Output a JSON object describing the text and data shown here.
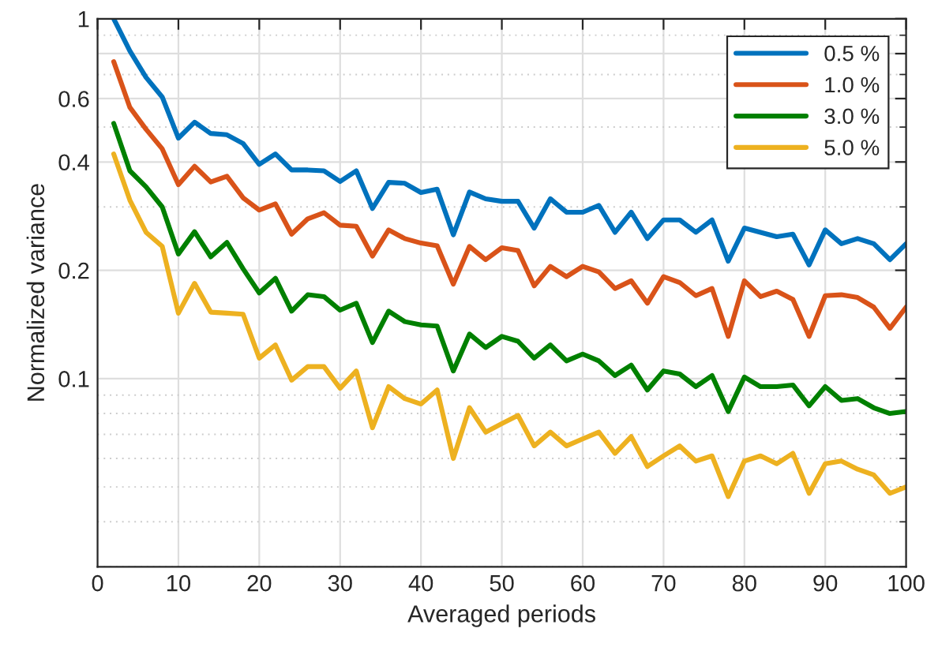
{
  "chart_data": {
    "type": "line",
    "xlabel": "Averaged periods",
    "ylabel": "Normalized variance",
    "x": [
      2,
      4,
      6,
      8,
      10,
      12,
      14,
      16,
      18,
      20,
      22,
      24,
      26,
      28,
      30,
      32,
      34,
      36,
      38,
      40,
      42,
      44,
      46,
      48,
      50,
      52,
      54,
      56,
      58,
      60,
      62,
      64,
      66,
      68,
      70,
      72,
      74,
      76,
      78,
      80,
      82,
      84,
      86,
      88,
      90,
      92,
      94,
      96,
      98,
      100
    ],
    "series": [
      {
        "name": "0.5 %",
        "color": "#0072bd",
        "values": [
          1.0,
          0.814,
          0.687,
          0.606,
          0.466,
          0.516,
          0.48,
          0.476,
          0.45,
          0.394,
          0.421,
          0.38,
          0.38,
          0.378,
          0.353,
          0.378,
          0.297,
          0.351,
          0.349,
          0.329,
          0.336,
          0.251,
          0.33,
          0.316,
          0.311,
          0.311,
          0.262,
          0.316,
          0.29,
          0.29,
          0.303,
          0.255,
          0.29,
          0.245,
          0.276,
          0.276,
          0.255,
          0.276,
          0.212,
          0.262,
          0.255,
          0.248,
          0.252,
          0.207,
          0.259,
          0.237,
          0.245,
          0.237,
          0.214,
          0.237
        ]
      },
      {
        "name": "1.0 %",
        "color": "#d95319",
        "values": [
          0.76,
          0.567,
          0.493,
          0.435,
          0.346,
          0.389,
          0.352,
          0.365,
          0.318,
          0.294,
          0.306,
          0.252,
          0.278,
          0.289,
          0.267,
          0.265,
          0.219,
          0.259,
          0.245,
          0.238,
          0.234,
          0.183,
          0.233,
          0.214,
          0.231,
          0.227,
          0.181,
          0.205,
          0.192,
          0.205,
          0.198,
          0.178,
          0.187,
          0.162,
          0.192,
          0.185,
          0.17,
          0.178,
          0.131,
          0.187,
          0.169,
          0.175,
          0.166,
          0.131,
          0.17,
          0.171,
          0.168,
          0.158,
          0.138,
          0.158
        ]
      },
      {
        "name": "3.0 %",
        "color": "#008000",
        "values": [
          0.512,
          0.378,
          0.341,
          0.3,
          0.222,
          0.256,
          0.218,
          0.239,
          0.202,
          0.173,
          0.19,
          0.154,
          0.171,
          0.169,
          0.155,
          0.162,
          0.126,
          0.154,
          0.144,
          0.141,
          0.14,
          0.105,
          0.133,
          0.122,
          0.131,
          0.127,
          0.114,
          0.124,
          0.112,
          0.117,
          0.112,
          0.102,
          0.109,
          0.093,
          0.105,
          0.103,
          0.095,
          0.102,
          0.081,
          0.101,
          0.095,
          0.095,
          0.096,
          0.084,
          0.095,
          0.087,
          0.088,
          0.083,
          0.08,
          0.081
        ]
      },
      {
        "name": "5.0 %",
        "color": "#edb120",
        "values": [
          0.421,
          0.313,
          0.255,
          0.233,
          0.152,
          0.184,
          0.153,
          0.152,
          0.151,
          0.114,
          0.124,
          0.099,
          0.108,
          0.108,
          0.094,
          0.105,
          0.073,
          0.095,
          0.088,
          0.085,
          0.093,
          0.06,
          0.083,
          0.071,
          0.075,
          0.079,
          0.065,
          0.071,
          0.065,
          0.068,
          0.071,
          0.062,
          0.069,
          0.057,
          0.061,
          0.065,
          0.059,
          0.061,
          0.047,
          0.059,
          0.061,
          0.058,
          0.062,
          0.048,
          0.058,
          0.059,
          0.056,
          0.054,
          0.048,
          0.05
        ]
      }
    ],
    "xlim": [
      0,
      100
    ],
    "xticks": [
      0,
      10,
      20,
      30,
      40,
      50,
      60,
      70,
      80,
      90,
      100
    ],
    "ylim": [
      0.03,
      1
    ],
    "yticks": [
      0.1,
      0.2,
      0.4,
      0.6,
      {
        "value": 0.8,
        "label": null
      },
      1
    ],
    "log": "y",
    "grid": true,
    "legend": "top right",
    "line_style": "solid",
    "marker": "none"
  }
}
